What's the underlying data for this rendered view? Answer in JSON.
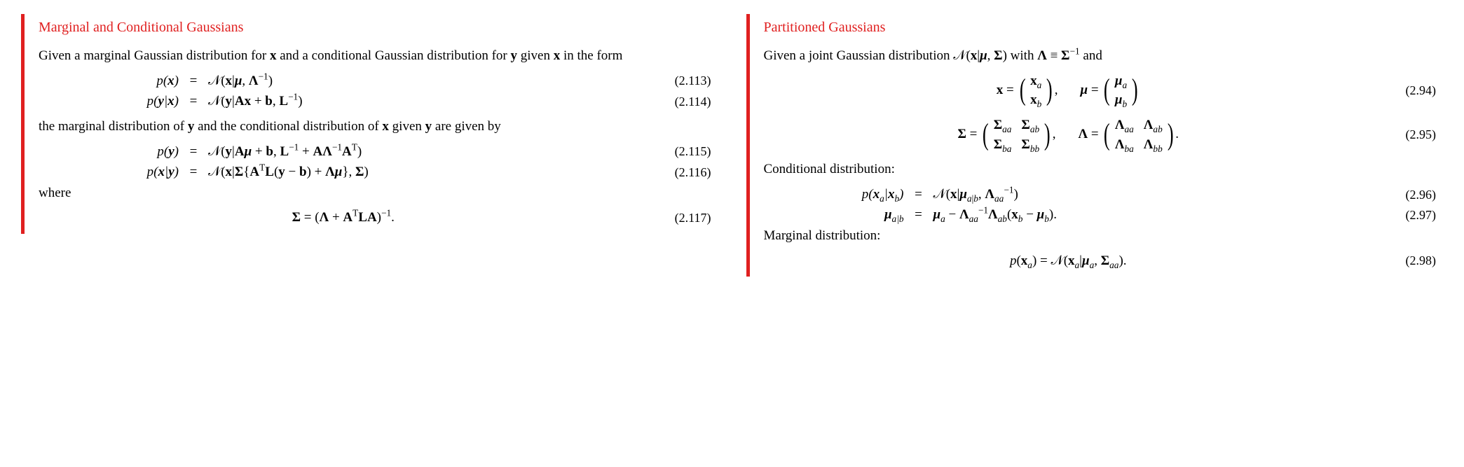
{
  "accent_color": "#e02020",
  "left": {
    "title": "Marginal and Conditional Gaussians",
    "intro_html": "Given a marginal Gaussian distribution for <span class='bold'>x</span> and a conditional Gaussian distribution for <span class='bold'>y</span> given <span class='bold'>x</span> in the form",
    "eq113": {
      "lhs": "<span class='it'>p</span>(<span class='bold'>x</span>)",
      "rhs": "<span class='cal calN'></span>(<span class='bold'>x</span>|<span class='bold it'>&mu;</span>, <span class='bold'>&Lambda;</span><sup>&minus;1</sup>)",
      "num": "(2.113)"
    },
    "eq114": {
      "lhs": "<span class='it'>p</span>(<span class='bold'>y</span>|<span class='bold'>x</span>)",
      "rhs": "<span class='cal calN'></span>(<span class='bold'>y</span>|<span class='bold'>Ax</span> + <span class='bold'>b</span>, <span class='bold'>L</span><sup>&minus;1</sup>)",
      "num": "(2.114)"
    },
    "mid_html": "the marginal distribution of <span class='bold'>y</span> and the conditional distribution of <span class='bold'>x</span> given <span class='bold'>y</span> are given by",
    "eq115": {
      "lhs": "<span class='it'>p</span>(<span class='bold'>y</span>)",
      "rhs": "<span class='cal calN'></span>(<span class='bold'>y</span>|<span class='bold'>A</span><span class='bold it'>&mu;</span> + <span class='bold'>b</span>, <span class='bold'>L</span><sup>&minus;1</sup> + <span class='bold'>A&Lambda;</span><sup>&minus;1</sup><span class='bold'>A</span><sup><span class='rm'>T</span></sup>)",
      "num": "(2.115)"
    },
    "eq116": {
      "lhs": "<span class='it'>p</span>(<span class='bold'>x</span>|<span class='bold'>y</span>)",
      "rhs": "<span class='cal calN'></span>(<span class='bold'>x</span>|<span class='bold'>&Sigma;</span>{<span class='bold'>A</span><sup><span class='rm'>T</span></sup><span class='bold'>L</span>(<span class='bold'>y</span> &minus; <span class='bold'>b</span>) + <span class='bold'>&Lambda;</span><span class='bold it'>&mu;</span>}, <span class='bold'>&Sigma;</span>)",
      "num": "(2.116)"
    },
    "where": "where",
    "eq117": {
      "center": "<span class='bold'>&Sigma;</span> = (<span class='bold'>&Lambda;</span> + <span class='bold'>A</span><sup><span class='rm'>T</span></sup><span class='bold'>LA</span>)<sup>&minus;1</sup>.",
      "num": "(2.117)"
    }
  },
  "right": {
    "title": "Partitioned Gaussians",
    "intro_html": "Given a joint Gaussian distribution <span class='cal calN'></span>(<span class='bold'>x</span>|<span class='bold it'>&mu;</span>, <span class='bold'>&Sigma;</span>) with <span class='bold'>&Lambda;</span> &equiv; <span class='bold'>&Sigma;</span><sup>&minus;1</sup> and",
    "eq94": {
      "x_cells": [
        "<span class='bold'>x</span><sub><span class='it'>a</span></sub>",
        "<span class='bold'>x</span><sub><span class='it'>b</span></sub>"
      ],
      "mu_cells": [
        "<span class='bold it'>&mu;</span><sub><span class='it'>a</span></sub>",
        "<span class='bold it'>&mu;</span><sub><span class='it'>b</span></sub>"
      ],
      "num": "(2.94)"
    },
    "eq95": {
      "sigma_cells": [
        "<span class='bold'>&Sigma;</span><sub><span class='it'>aa</span></sub>",
        "<span class='bold'>&Sigma;</span><sub><span class='it'>ab</span></sub>",
        "<span class='bold'>&Sigma;</span><sub><span class='it'>ba</span></sub>",
        "<span class='bold'>&Sigma;</span><sub><span class='it'>bb</span></sub>"
      ],
      "lambda_cells": [
        "<span class='bold'>&Lambda;</span><sub><span class='it'>aa</span></sub>",
        "<span class='bold'>&Lambda;</span><sub><span class='it'>ab</span></sub>",
        "<span class='bold'>&Lambda;</span><sub><span class='it'>ba</span></sub>",
        "<span class='bold'>&Lambda;</span><sub><span class='it'>bb</span></sub>"
      ],
      "num": "(2.95)"
    },
    "cond_label": "Conditional distribution:",
    "eq96": {
      "lhs": "<span class='it'>p</span>(<span class='bold'>x</span><sub><span class='it'>a</span></sub>|<span class='bold'>x</span><sub><span class='it'>b</span></sub>)",
      "rhs": "<span class='cal calN'></span>(<span class='bold'>x</span>|<span class='bold it'>&mu;</span><sub><span class='it'>a</span>|<span class='it'>b</span></sub>, <span class='bold'>&Lambda;</span><sub><span class='it'>aa</span></sub><sup>&minus;1</sup>)",
      "num": "(2.96)"
    },
    "eq97": {
      "lhs": "<span class='bold it'>&mu;</span><sub><span class='it'>a</span>|<span class='it'>b</span></sub>",
      "rhs": "<span class='bold it'>&mu;</span><sub><span class='it'>a</span></sub> &minus; <span class='bold'>&Lambda;</span><sub><span class='it'>aa</span></sub><sup>&minus;1</sup><span class='bold'>&Lambda;</span><sub><span class='it'>ab</span></sub>(<span class='bold'>x</span><sub><span class='it'>b</span></sub> &minus; <span class='bold it'>&mu;</span><sub><span class='it'>b</span></sub>).",
      "num": "(2.97)"
    },
    "marg_label": "Marginal distribution:",
    "eq98": {
      "center": "<span class='it'>p</span>(<span class='bold'>x</span><sub><span class='it'>a</span></sub>) = <span class='cal calN'></span>(<span class='bold'>x</span><sub><span class='it'>a</span></sub>|<span class='bold it'>&mu;</span><sub><span class='it'>a</span></sub>, <span class='bold'>&Sigma;</span><sub><span class='it'>aa</span></sub>).",
      "num": "(2.98)"
    }
  }
}
